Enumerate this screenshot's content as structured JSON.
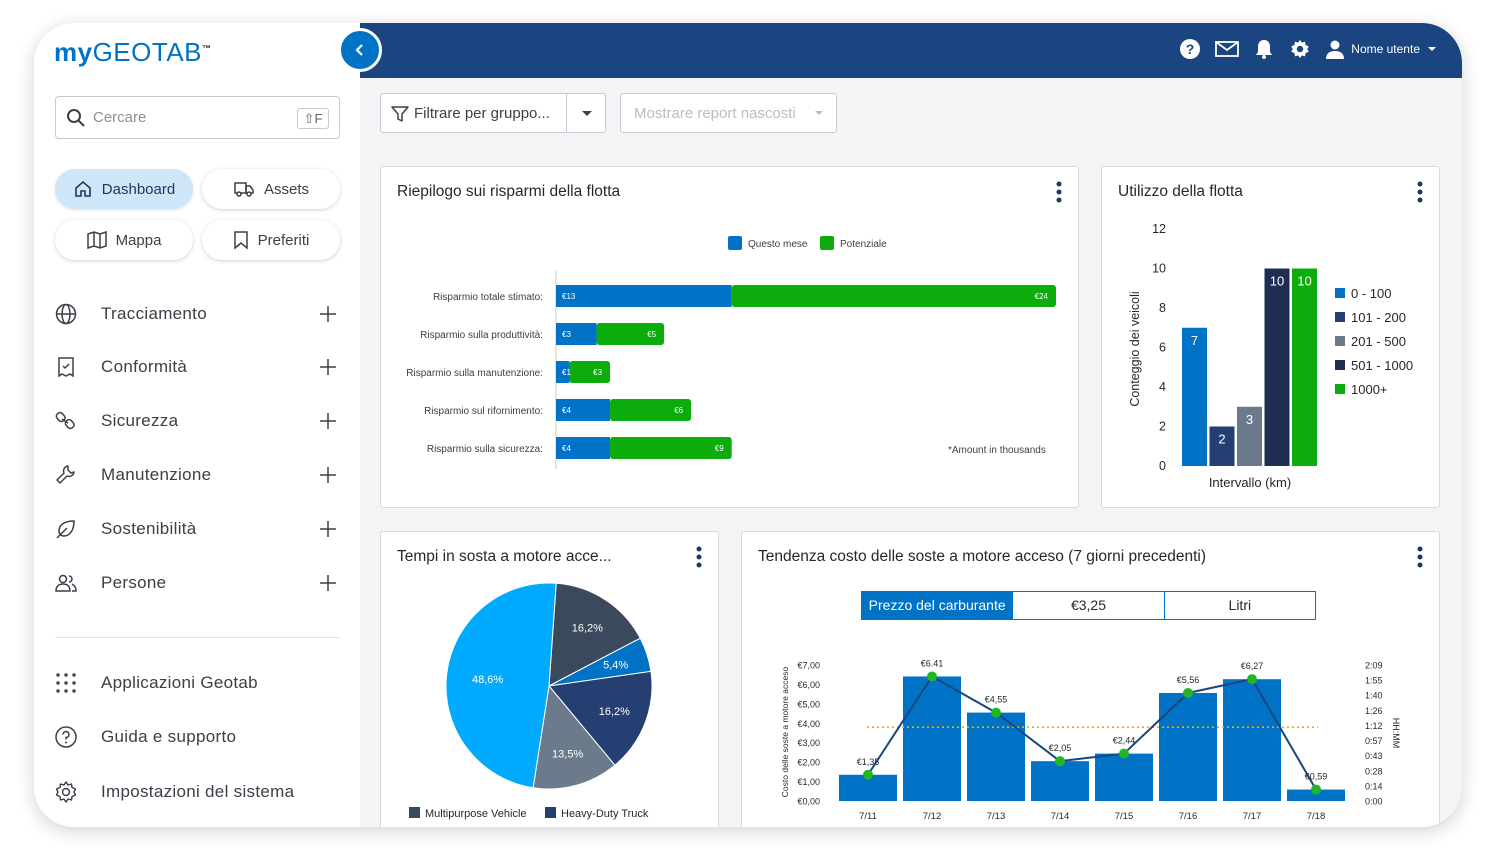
{
  "brand": {
    "my": "my",
    "geo": "GEOTAB",
    "tm": "™"
  },
  "search": {
    "placeholder": "Cercare",
    "shortcut": "⇧F"
  },
  "quick_links": [
    {
      "label": "Dashboard",
      "icon": "home-icon",
      "active": true
    },
    {
      "label": "Assets",
      "icon": "truck-icon",
      "active": false
    },
    {
      "label": "Mappa",
      "icon": "map-icon",
      "active": false
    },
    {
      "label": "Preferiti",
      "icon": "bookmark-icon",
      "active": false
    }
  ],
  "nav": [
    {
      "label": "Tracciamento",
      "icon": "globe-icon"
    },
    {
      "label": "Conformità",
      "icon": "compliance-icon"
    },
    {
      "label": "Sicurezza",
      "icon": "safety-icon"
    },
    {
      "label": "Manutenzione",
      "icon": "wrench-icon"
    },
    {
      "label": "Sostenibilità",
      "icon": "leaf-icon"
    },
    {
      "label": "Persone",
      "icon": "people-icon"
    }
  ],
  "bottom_nav": [
    {
      "label": "Applicazioni Geotab",
      "icon": "apps-grid-icon"
    },
    {
      "label": "Guida e supporto",
      "icon": "help-icon"
    },
    {
      "label": "Impostazioni del sistema",
      "icon": "gear-icon"
    }
  ],
  "header": {
    "user": "Nome utente",
    "icons": [
      "help-icon",
      "mail-icon",
      "bell-icon",
      "gear-icon",
      "user-icon"
    ]
  },
  "filters": {
    "group": "Filtrare per gruppo...",
    "hidden_reports": "Mostrare report nascosti"
  },
  "colors": {
    "header": "#1b4580",
    "accent": "#0073c6",
    "green": "#0cac0c",
    "light_blue": "#00aaff",
    "navy": "#253f73",
    "slate": "#3a4a5c",
    "gray": "#6b7b8c"
  },
  "cards": {
    "savings": {
      "title": "Riepilogo sui risparmi della flotta",
      "note": "*Amount in thousands",
      "chart_data": {
        "type": "bar",
        "orientation": "horizontal",
        "stacked": true,
        "categories": [
          "Risparmio totale stimato:",
          "Risparmio sulla produttività:",
          "Risparmio sulla manutenzione:",
          "Risparmio sul rifornimento:",
          "Risparmio sulla sicurezza:"
        ],
        "series": [
          {
            "name": "Questo mese",
            "color": "#0073c6",
            "values": [
              13,
              3,
              1,
              4,
              4
            ],
            "labels": [
              "€13",
              "€3",
              "€1",
              "€4",
              "€4"
            ]
          },
          {
            "name": "Potenziale",
            "color": "#0cac0c",
            "values": [
              24,
              5,
              3,
              6,
              9
            ],
            "labels": [
              "€24",
              "€5",
              "€3",
              "€6",
              "€9"
            ]
          }
        ],
        "legend": "top"
      }
    },
    "utilization": {
      "title": "Utilizzo della flotta",
      "chart_data": {
        "type": "bar",
        "categories": [
          "0 - 100",
          "101 - 200",
          "201 - 500",
          "501 - 1000",
          "1000+"
        ],
        "values": [
          7,
          2,
          3,
          10,
          10
        ],
        "value_labels": [
          "7",
          "2",
          "3",
          "10",
          "10"
        ],
        "colors": [
          "#0073c6",
          "#253f73",
          "#6b7b8c",
          "#1f2d52",
          "#0cac0c"
        ],
        "xlabel": "Intervallo (km)",
        "ylabel": "Conteggio dei veicoli",
        "ylim": [
          0,
          12
        ],
        "yticks": [
          "0",
          "2",
          "4",
          "6",
          "8",
          "10",
          "12"
        ],
        "legend": "right"
      }
    },
    "idle_pie": {
      "title": "Tempi in sosta a motore acce...",
      "chart_data": {
        "type": "pie",
        "slices": [
          {
            "value": 16.2,
            "label": "16,2%",
            "color": "#3a4a5c"
          },
          {
            "value": 5.4,
            "label": "5,4%",
            "color": "#0073c6"
          },
          {
            "value": 16.2,
            "label": "16,2%",
            "color": "#253f73"
          },
          {
            "value": 13.5,
            "label": "13,5%",
            "color": "#6b7b8c"
          },
          {
            "value": 48.6,
            "label": "48,6%",
            "color": "#00aaff"
          }
        ],
        "legend_entries": [
          {
            "name": "Multipurpose Vehicle",
            "color": "#3a4a5c"
          },
          {
            "name": "Heavy-Duty Truck",
            "color": "#253f73"
          }
        ],
        "legend": "bottom"
      }
    },
    "idle_trend": {
      "title": "Tendenza costo delle soste a motore acceso (7 giorni precedenti)",
      "tabs": [
        "Prezzo del carburante",
        "€3,25",
        "Litri"
      ],
      "chart_data": {
        "type": "bar",
        "categories": [
          "7/11",
          "7/12",
          "7/13",
          "7/14",
          "7/15",
          "7/16",
          "7/17",
          "7/18"
        ],
        "series": [
          {
            "name": "",
            "type": "bar",
            "values": [
              1.35,
              6.41,
              4.55,
              2.05,
              2.44,
              5.56,
              6.27,
              0.59
            ],
            "color": "#0073c6"
          },
          {
            "name": "",
            "type": "line",
            "values": [
              1.35,
              6.41,
              4.55,
              2.05,
              2.44,
              5.56,
              6.27,
              0.59
            ],
            "color": "#1b4580"
          }
        ],
        "point_labels": [
          "€1,35",
          "€6.41",
          "€4,55",
          "€2,05",
          "€2,44",
          "€5,56",
          "€6,27",
          "€0,59"
        ],
        "average_line": 3.8,
        "ylabel": "Costo delle soste a motore acceso",
        "ylim": [
          0,
          7
        ],
        "yticks": [
          "€0,00",
          "€1,00",
          "€2,00",
          "€3,00",
          "€4,00",
          "€5,00",
          "€6,00",
          "€7,00"
        ],
        "y2label": "HH:MM",
        "y2ticks": [
          "0:00",
          "0:14",
          "0:28",
          "0:43",
          "0:57",
          "1:12",
          "1:26",
          "1:40",
          "1:55",
          "2:09"
        ]
      }
    }
  }
}
